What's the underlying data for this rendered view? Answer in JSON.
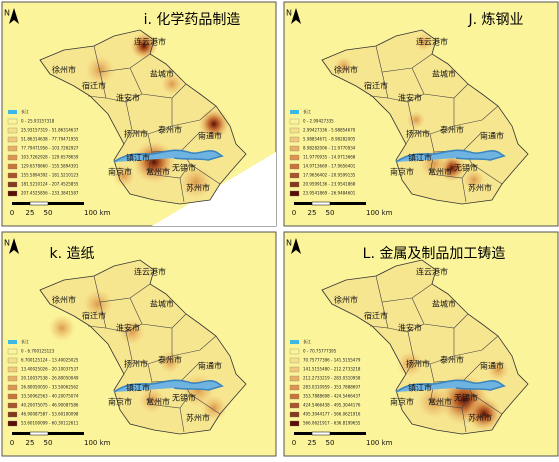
{
  "panels": [
    {
      "title": "i. 化学药品制造",
      "north": "N",
      "cities": [
        "连云港市",
        "徐州市",
        "盐城市",
        "宿迁市",
        "淮安市",
        "扬州市",
        "泰州市",
        "南通市",
        "镇江市",
        "南京市",
        "常州市",
        "无锡市",
        "苏州市"
      ],
      "legend": {
        "river": "长江",
        "classes": [
          "0 - 25.93157318",
          "25.93157319 - 51.86314637",
          "51.86314638 - 77.79471955",
          "77.79471956 - 103.7262927",
          "103.7262928 - 129.6578659",
          "129.6578660 - 155.5894391",
          "155.5894392 - 181.5210123",
          "181.5210124 - 207.4525855",
          "207.4525856 - 233.3841587"
        ]
      },
      "scale": [
        "0",
        "25",
        "50",
        "100 km"
      ]
    },
    {
      "title": "J. 炼钢业",
      "north": "N",
      "cities": [
        "连云港市",
        "徐州市",
        "盐城市",
        "宿迁市",
        "淮安市",
        "扬州市",
        "泰州市",
        "南通市",
        "镇江市",
        "南京市",
        "常州市",
        "无锡市",
        "苏州市"
      ],
      "legend": {
        "river": "长江",
        "classes": [
          "0 - 2.99427335",
          "2.99427336 - 5.98854670",
          "5.98854671 - 8.98282005",
          "8.98282006 - 11.9770934",
          "11.9770935 - 14.9713668",
          "14.9713669 - 17.9656401",
          "17.9656402 - 20.9599135",
          "20.9599136 - 23.9541868",
          "23.9541869 - 26.9484601"
        ]
      },
      "scale": [
        "0",
        "25",
        "50",
        "100 km"
      ]
    },
    {
      "title": "k. 造纸",
      "north": "N",
      "cities": [
        "连云港市",
        "徐州市",
        "盐城市",
        "宿迁市",
        "淮安市",
        "扬州市",
        "泰州市",
        "南通市",
        "镇江市",
        "南京市",
        "常州市",
        "无锡市",
        "苏州市"
      ],
      "legend": {
        "river": "长江",
        "classes": [
          "0 - 6.700125123",
          "6.700125124 - 13.40025025",
          "13.40025026 - 20.10037537",
          "20.10037538 - 26.80050049",
          "26.80050050 - 33.50062562",
          "33.50062563 - 40.20075074",
          "40.20075075 - 46.90087586",
          "46.90087587 - 53.60100098",
          "53.60100099 - 60.30112611"
        ]
      },
      "scale": [
        "0",
        "25",
        "50",
        "100 km"
      ]
    },
    {
      "title": "L. 金属及制品加工铸造",
      "north": "N",
      "cities": [
        "连云港市",
        "徐州市",
        "盐城市",
        "宿迁市",
        "淮安市",
        "扬州市",
        "泰州市",
        "南通市",
        "镇江市",
        "南京市",
        "常州市",
        "无锡市",
        "苏州市"
      ],
      "legend": {
        "river": "长江",
        "classes": [
          "0 - 70.75777395",
          "70.75777396 - 141.5155479",
          "141.5155480 - 212.2733218",
          "212.2733219 - 283.0310958",
          "283.0310959 - 353.7888697",
          "353.7888698 - 424.5466437",
          "424.5466438 - 495.3044176",
          "495.3044177 - 566.0621916",
          "566.0621917 - 636.8199655"
        ]
      },
      "scale": [
        "0",
        "25",
        "50",
        "100 km"
      ]
    }
  ]
}
